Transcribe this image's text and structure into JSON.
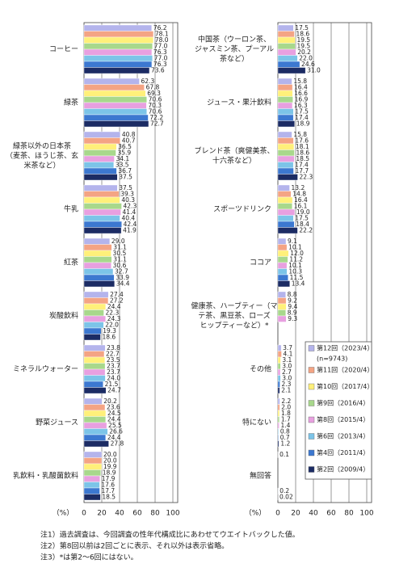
{
  "chart_data": [
    {
      "type": "bar",
      "orientation": "horizontal",
      "x_label": "（%）",
      "categories": [
        [
          "コーヒー"
        ],
        [
          "緑茶"
        ],
        [
          "緑茶以外の日本茶",
          "（麦茶、ほうじ茶、玄",
          "米茶など）"
        ],
        [
          "牛乳"
        ],
        [
          "紅茶"
        ],
        [
          "炭酸飲料"
        ],
        [
          "ミネラルウォーター"
        ],
        [
          "野菜ジュース"
        ],
        [
          "乳飲料・乳酸菌飲料"
        ]
      ],
      "xlim": [
        0,
        100
      ],
      "xticks": [
        0,
        20,
        40,
        60,
        80,
        100
      ],
      "grid": true,
      "series": [
        {
          "color": "#b4b4ec",
          "values": [
            76.2,
            62.3,
            40.8,
            37.5,
            29.0,
            27.4,
            23.8,
            20.2,
            20.0
          ],
          "value_labels": [
            "76.2",
            "62.3",
            "40.8",
            "37.5",
            "29.0",
            "27.4",
            "23.8",
            "20.2",
            "20.0"
          ]
        },
        {
          "color": "#f4a484",
          "values": [
            78.1,
            67.8,
            40.7,
            39.3,
            31.1,
            27.2,
            22.7,
            23.6,
            20.0
          ],
          "value_labels": [
            "78.1",
            "67.8",
            "40.7",
            "39.3",
            "31.1",
            "27.2",
            "22.7",
            "23.6",
            "20.0"
          ]
        },
        {
          "color": "#fff07a",
          "values": [
            78.0,
            69.3,
            36.5,
            40.3,
            30.5,
            24.4,
            23.5,
            24.5,
            19.9
          ],
          "value_labels": [
            "78.0",
            "69.3",
            "36.5",
            "40.3",
            "30.5",
            "24.4",
            "23.5",
            "24.5",
            "19.9"
          ]
        },
        {
          "color": "#a8d88c",
          "values": [
            77.0,
            70.6,
            35.9,
            42.3,
            31.1,
            22.3,
            23.7,
            24.4,
            18.9
          ],
          "value_labels": [
            "77.0",
            "70.6",
            "35.9",
            "42.3",
            "31.1",
            "22.3",
            "23.7",
            "24.4",
            "18.9"
          ]
        },
        {
          "color": "#e8a0e0",
          "values": [
            76.3,
            70.3,
            34.1,
            41.4,
            30.6,
            24.3,
            23.7,
            25.5,
            17.9
          ],
          "value_labels": [
            "76.3",
            "70.3",
            "34.1",
            "41.4",
            "30.6",
            "24.3",
            "23.7",
            "25.5",
            "17.9"
          ]
        },
        {
          "color": "#7cc4e8",
          "values": [
            77.0,
            70.6,
            33.5,
            40.4,
            32.7,
            22.0,
            24.0,
            26.6,
            17.6
          ],
          "value_labels": [
            "77.0",
            "70.6",
            "33.5",
            "40.4",
            "32.7",
            "22.0",
            "24.0",
            "26.6",
            "17.6"
          ]
        },
        {
          "color": "#3c78d0",
          "values": [
            76.3,
            72.2,
            36.7,
            42.4,
            33.9,
            19.3,
            21.5,
            24.4,
            17.7
          ],
          "value_labels": [
            "76.3",
            "72.2",
            "36.7",
            "42.4",
            "33.9",
            "19.3",
            "21.5",
            "24.4",
            "17.7"
          ]
        },
        {
          "color": "#1c2c64",
          "values": [
            73.6,
            72.7,
            37.5,
            41.9,
            34.4,
            18.6,
            24.7,
            27.8,
            18.5
          ],
          "value_labels": [
            "73.6",
            "72.7",
            "37.5",
            "41.9",
            "34.4",
            "18.6",
            "24.7",
            "27.8",
            "18.5"
          ]
        }
      ]
    },
    {
      "type": "bar",
      "orientation": "horizontal",
      "x_label": "（%）",
      "legend": "lower right",
      "legend_note": "(n=9743)",
      "categories": [
        [
          "中国茶（ウーロン茶、",
          "ジャスミン茶、プーアル",
          "茶など）"
        ],
        [
          "ジュース・果汁飲料"
        ],
        [
          "ブレンド茶（爽健美茶、",
          "十六茶など）"
        ],
        [
          "スポーツドリンク"
        ],
        [
          "ココア"
        ],
        [
          "健康茶、ハーブティー（マ",
          "テ茶、黒豆茶、ローズ",
          "ヒップティーなど）*"
        ],
        [
          "その他"
        ],
        [
          "特にない"
        ],
        [
          "無回答"
        ]
      ],
      "xlim": [
        0,
        100
      ],
      "xticks": [
        0,
        20,
        40,
        60,
        80,
        100
      ],
      "grid": true,
      "series": [
        {
          "name": "第12回（2023/4）",
          "color": "#b4b4ec",
          "values": [
            17.5,
            15.8,
            15.8,
            13.2,
            9.1,
            8.8,
            3.7,
            2.2,
            0.1
          ],
          "value_labels": [
            "17.5",
            "15.8",
            "15.8",
            "13.2",
            "9.1",
            "8.8",
            "3.7",
            "2.2",
            "0.1"
          ]
        },
        {
          "name": "第11回（2020/4）",
          "color": "#f4a484",
          "values": [
            18.6,
            16.4,
            17.6,
            14.8,
            10.1,
            9.2,
            4.1,
            2.0,
            null
          ],
          "value_labels": [
            "18.6",
            "16.4",
            "17.6",
            "14.8",
            "10.1",
            "9.2",
            "4.1",
            "2.0",
            null
          ]
        },
        {
          "name": "第10回（2017/4）",
          "color": "#fff07a",
          "values": [
            19.5,
            16.6,
            18.1,
            16.4,
            12.0,
            9.4,
            3.1,
            1.8,
            null
          ],
          "value_labels": [
            "19.5",
            "16.6",
            "18.1",
            "16.4",
            "12.0",
            "9.4",
            "3.1",
            "1.8",
            null
          ]
        },
        {
          "name": "第9回（2016/4）",
          "color": "#a8d88c",
          "values": [
            19.5,
            16.9,
            18.6,
            16.1,
            11.2,
            8.9,
            3.0,
            1.7,
            null
          ],
          "value_labels": [
            "19.5",
            "16.9",
            "18.6",
            "16.1",
            "11.2",
            "8.9",
            "3.0",
            "1.7",
            null
          ]
        },
        {
          "name": "第8回（2015/4）",
          "color": "#e8a0e0",
          "values": [
            20.2,
            16.3,
            18.5,
            19.0,
            10.1,
            9.3,
            2.7,
            1.4,
            null
          ],
          "value_labels": [
            "20.2",
            "16.3",
            "18.5",
            "19.0",
            "10.1",
            "9.3",
            "2.7",
            "1.4",
            null
          ]
        },
        {
          "name": "第6回（2013/4）",
          "color": "#7cc4e8",
          "values": [
            22.0,
            17.5,
            17.4,
            17.5,
            10.3,
            null,
            3.0,
            0.8,
            null
          ],
          "value_labels": [
            "22.0",
            "17.5",
            "17.4",
            "17.5",
            "10.3",
            null,
            "3.0",
            "0.8",
            null
          ]
        },
        {
          "name": "第4回（2011/4）",
          "color": "#3c78d0",
          "values": [
            24.6,
            17.4,
            17.7,
            18.4,
            11.5,
            null,
            2.3,
            0.7,
            0.2
          ],
          "value_labels": [
            "24.6",
            "17.4",
            "17.7",
            "18.4",
            "11.5",
            null,
            "2.3",
            "0.7",
            "0.2"
          ]
        },
        {
          "name": "第2回（2009/4）",
          "color": "#1c2c64",
          "values": [
            31.0,
            18.9,
            22.3,
            22.2,
            13.4,
            null,
            2.1,
            1.2,
            0.02
          ],
          "value_labels": [
            "31.0",
            "18.9",
            "22.3",
            "22.2",
            "13.4",
            null,
            "2.1",
            "1.2",
            "0.02"
          ]
        }
      ]
    }
  ],
  "notes": [
    "注1）過去調査は、今回調査の性年代構成比にあわせてウエイトバックした値。",
    "注2）第8回以前は2回ごとに表示、それ以外は表示省略。",
    "注3）*は第2～6回にはない。"
  ]
}
